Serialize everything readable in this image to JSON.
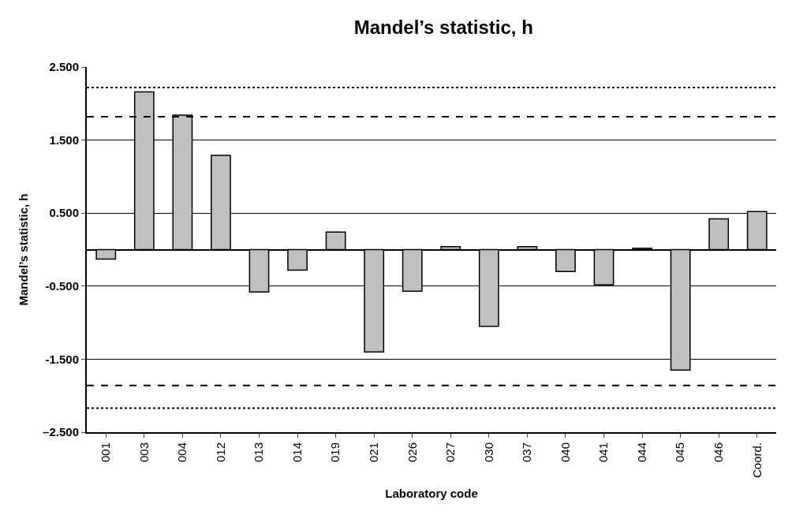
{
  "chart_data": {
    "type": "bar",
    "title": "Mandel’s statistic, h",
    "xlabel": "Laboratory code",
    "ylabel": "Mandel’s statistic, h",
    "categories": [
      "001",
      "003",
      "004",
      "012",
      "013",
      "014",
      "019",
      "021",
      "026",
      "027",
      "030",
      "037",
      "040",
      "041",
      "044",
      "045",
      "046",
      "Coord."
    ],
    "values": [
      -0.13,
      2.16,
      1.84,
      1.29,
      -0.58,
      -0.28,
      0.24,
      -1.4,
      -0.57,
      0.04,
      -1.05,
      0.04,
      -0.3,
      -0.48,
      0.02,
      -1.65,
      0.42,
      0.52
    ],
    "color": "#c0c0c0",
    "ylim": [
      -2.5,
      2.5
    ],
    "yticks": [
      {
        "value": 2.5,
        "label": "2.500"
      },
      {
        "value": 1.5,
        "label": "1.500"
      },
      {
        "value": 0.5,
        "label": "0.500"
      },
      {
        "value": -0.5,
        "label": "-0.500"
      },
      {
        "value": -1.5,
        "label": "-1.500"
      },
      {
        "value": -2.5,
        "label": "–2.500"
      }
    ],
    "grid": "y",
    "legend": false,
    "ref_lines": [
      {
        "axis": "y",
        "value": 2.22,
        "color": "#000000",
        "line_style": "dotted"
      },
      {
        "axis": "y",
        "value": 1.82,
        "color": "#000000",
        "line_style": "dashed"
      },
      {
        "axis": "y",
        "value": -1.86,
        "color": "#000000",
        "line_style": "dashed"
      },
      {
        "axis": "y",
        "value": -2.17,
        "color": "#000000",
        "line_style": "dotted"
      }
    ]
  }
}
